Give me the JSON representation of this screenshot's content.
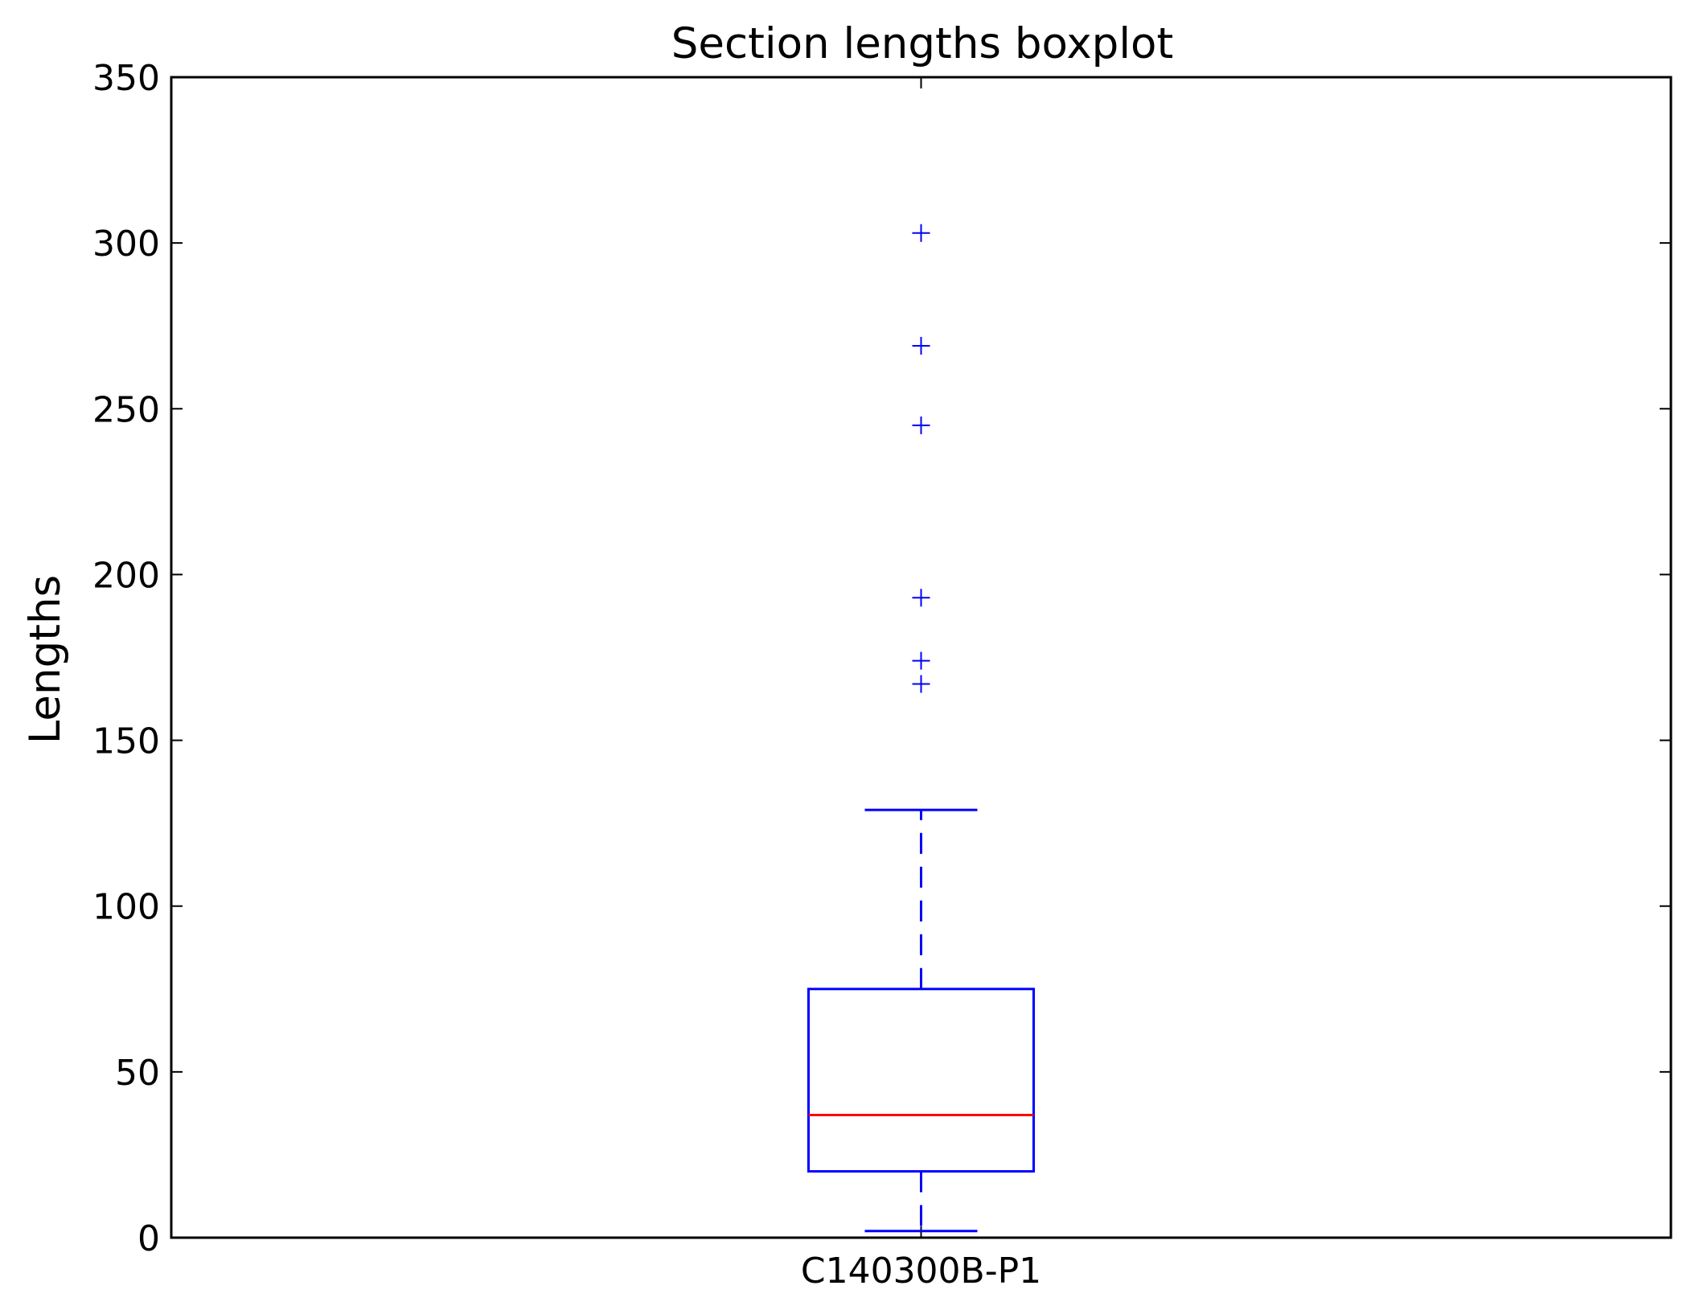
{
  "chart_data": {
    "type": "box",
    "title": "Section lengths boxplot",
    "xlabel": "",
    "ylabel": "Lengths",
    "ylim": [
      0,
      350
    ],
    "yticks": [
      0,
      50,
      100,
      150,
      200,
      250,
      300,
      350
    ],
    "grid": false,
    "categories": [
      "C140300B-P1"
    ],
    "boxes": [
      {
        "category": "C140300B-P1",
        "whisker_low": 2,
        "q1": 20,
        "median": 37,
        "q3": 75,
        "whisker_high": 129,
        "outliers": [
          167,
          174,
          193,
          245,
          269,
          303
        ]
      }
    ],
    "colors": {
      "box": "#0000ff",
      "median": "#ff0000",
      "outlier": "#0000ff",
      "axes": "#000000"
    }
  }
}
